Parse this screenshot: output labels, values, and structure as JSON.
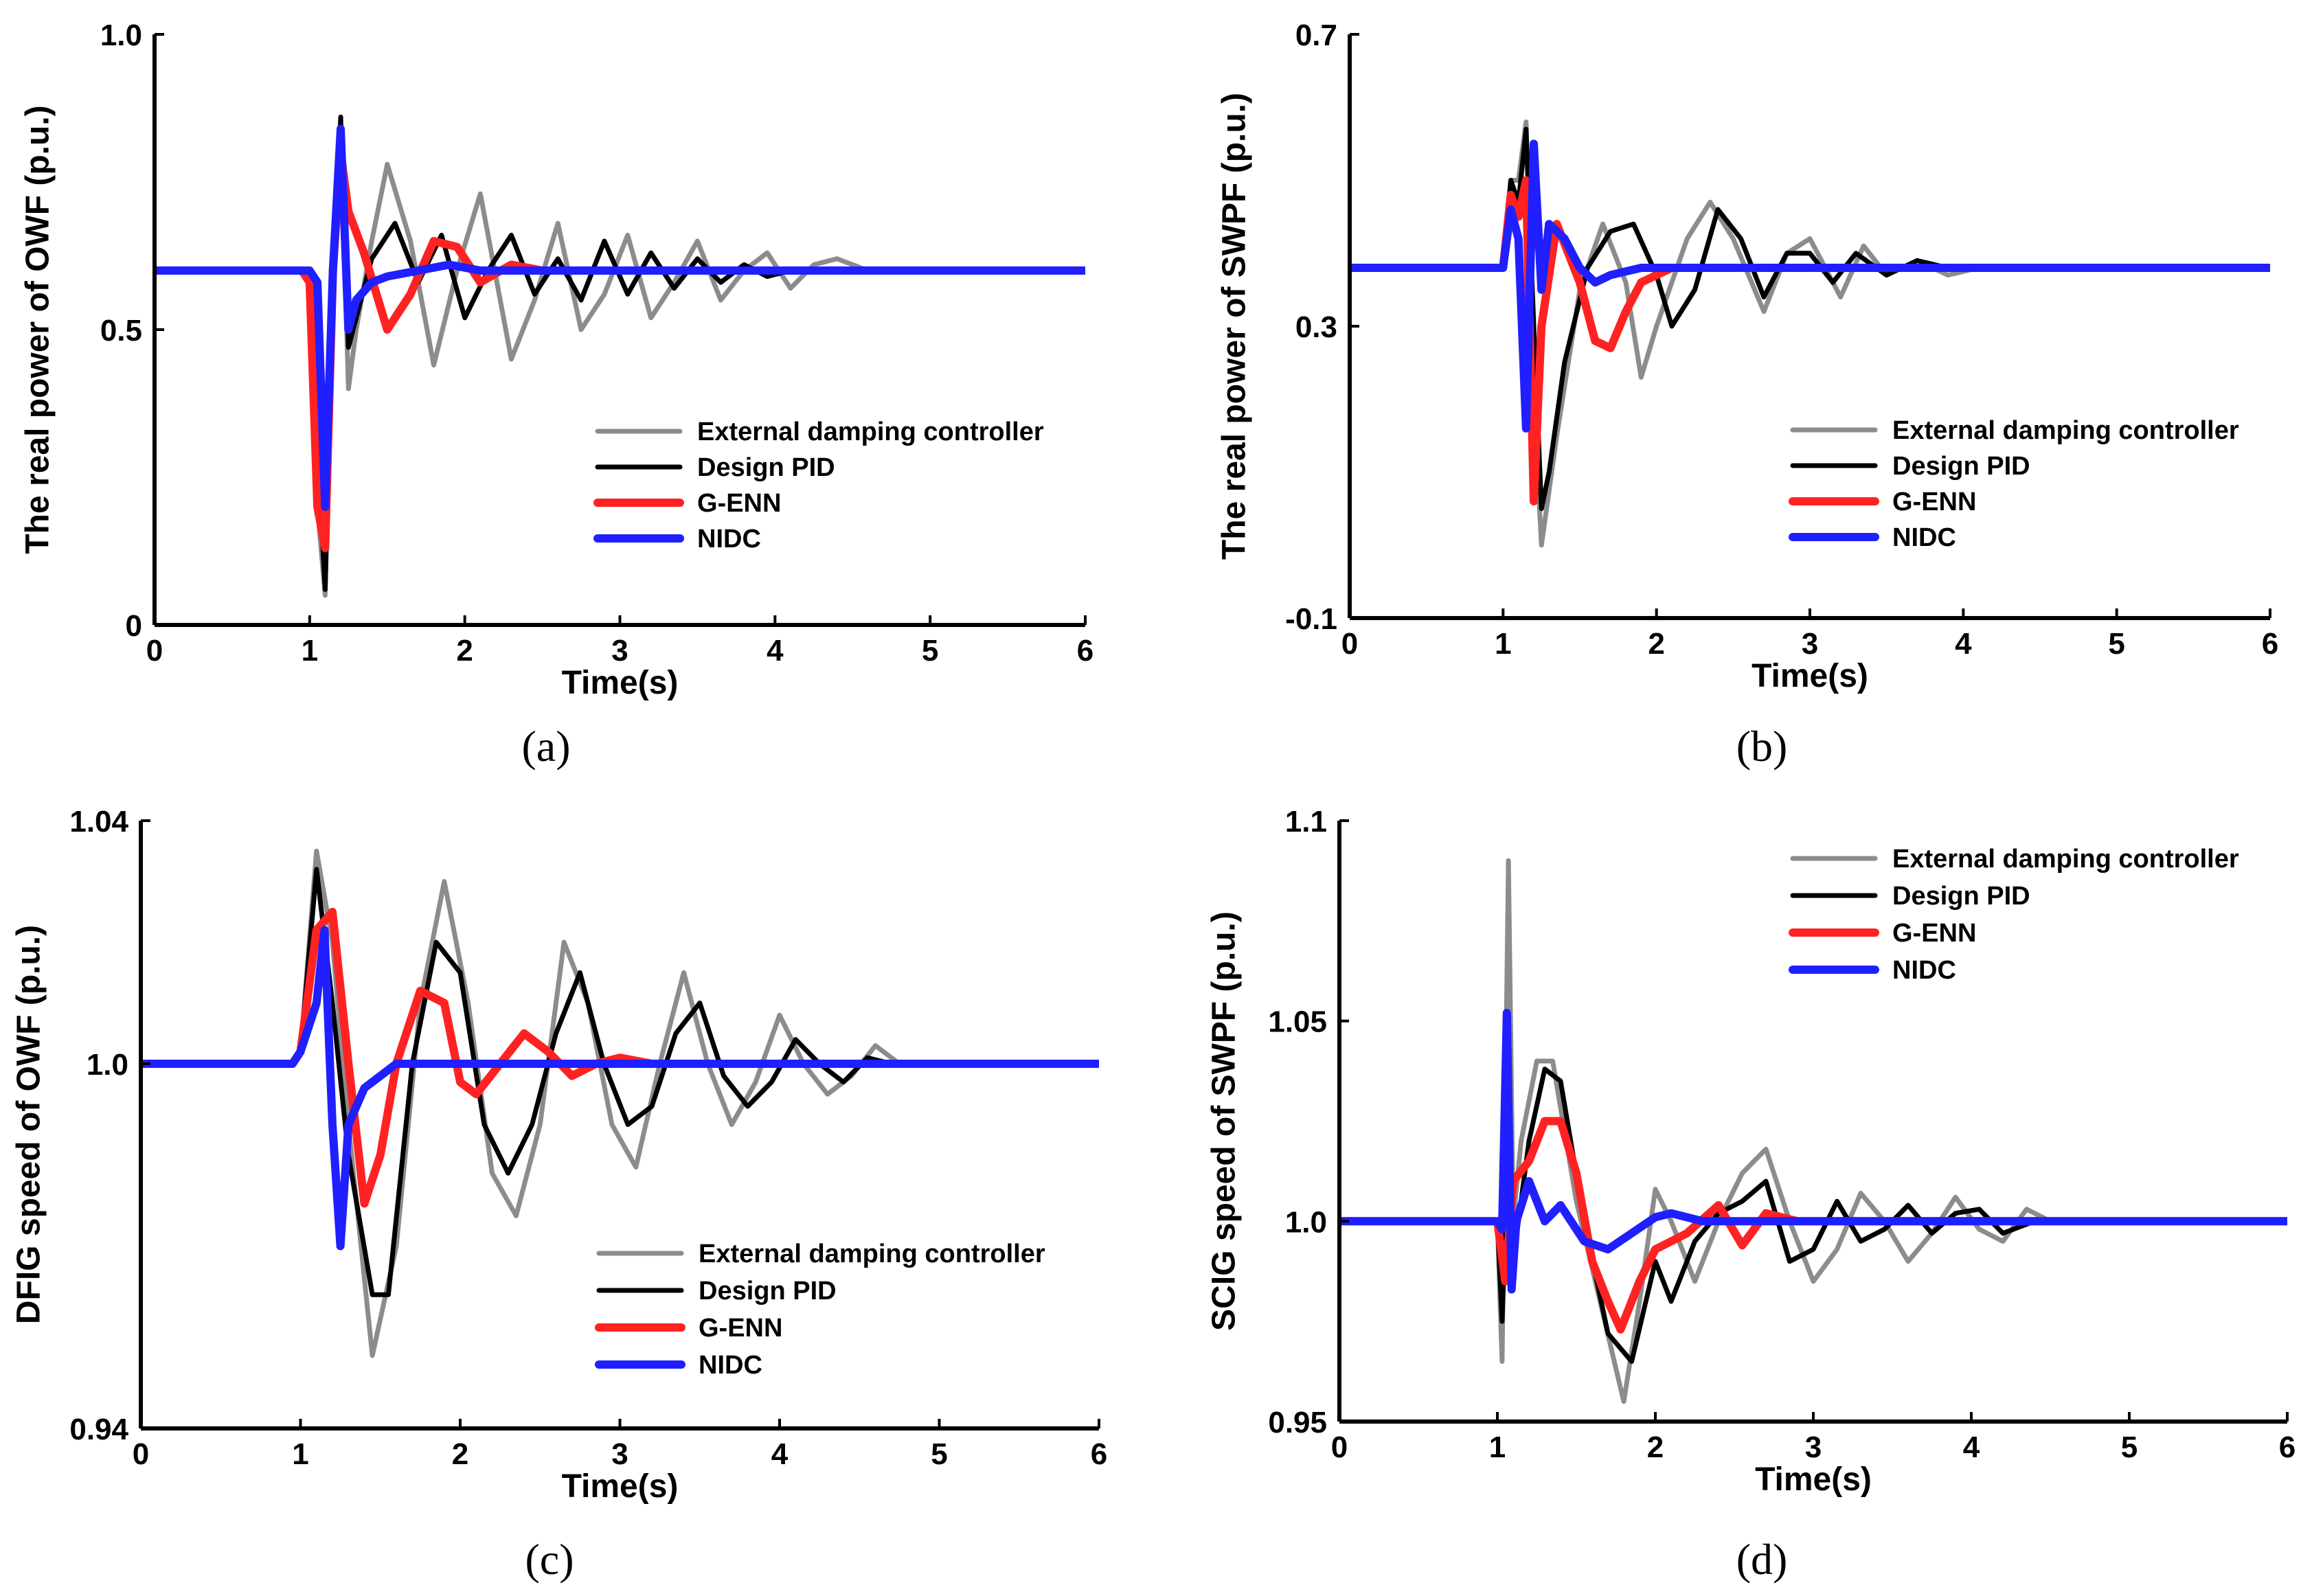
{
  "chart_data": [
    {
      "type": "line",
      "panel_label": "(a)",
      "xlabel": "Time(s)",
      "ylabel": "The real power of OWF (p.u.)",
      "xlim": [
        0,
        6
      ],
      "ylim": [
        0,
        1.0
      ],
      "xticks": [
        "0",
        "1",
        "2",
        "3",
        "4",
        "5",
        "6"
      ],
      "yticks": [
        {
          "value": 0,
          "label": "0"
        },
        {
          "value": 0.5,
          "label": "0.5"
        },
        {
          "value": 1.0,
          "label": "1.0"
        }
      ],
      "legend_position": "lower-right",
      "legend_entries": [
        "External damping controller",
        "Design PID",
        "G-ENN",
        "NIDC"
      ],
      "series": [
        {
          "name": "External damping controller",
          "color": "#8c8c8c",
          "x": [
            0,
            0.95,
            1.0,
            1.05,
            1.1,
            1.15,
            1.2,
            1.25,
            1.3,
            1.4,
            1.5,
            1.65,
            1.8,
            1.95,
            2.1,
            2.3,
            2.45,
            2.6,
            2.75,
            2.9,
            3.05,
            3.2,
            3.35,
            3.5,
            3.65,
            3.8,
            3.95,
            4.1,
            4.25,
            4.4,
            4.6,
            4.8,
            6.0
          ],
          "y": [
            0.6,
            0.6,
            0.6,
            0.2,
            0.05,
            0.6,
            0.84,
            0.4,
            0.5,
            0.65,
            0.78,
            0.65,
            0.44,
            0.6,
            0.73,
            0.45,
            0.55,
            0.68,
            0.5,
            0.56,
            0.66,
            0.52,
            0.58,
            0.65,
            0.55,
            0.6,
            0.63,
            0.57,
            0.61,
            0.62,
            0.6,
            0.6,
            0.6
          ]
        },
        {
          "name": "Design PID",
          "color": "#000000",
          "x": [
            0,
            0.95,
            1.0,
            1.05,
            1.1,
            1.15,
            1.2,
            1.25,
            1.4,
            1.55,
            1.7,
            1.85,
            2.0,
            2.15,
            2.3,
            2.45,
            2.6,
            2.75,
            2.9,
            3.05,
            3.2,
            3.35,
            3.5,
            3.65,
            3.8,
            3.95,
            4.1,
            4.3,
            4.5,
            6.0
          ],
          "y": [
            0.6,
            0.6,
            0.6,
            0.3,
            0.06,
            0.55,
            0.86,
            0.47,
            0.62,
            0.68,
            0.58,
            0.66,
            0.52,
            0.6,
            0.66,
            0.56,
            0.62,
            0.55,
            0.65,
            0.56,
            0.63,
            0.57,
            0.62,
            0.58,
            0.61,
            0.59,
            0.6,
            0.6,
            0.6,
            0.6
          ]
        },
        {
          "name": "G-ENN",
          "color": "#ff2222",
          "x": [
            0,
            0.95,
            1.0,
            1.05,
            1.1,
            1.15,
            1.2,
            1.25,
            1.35,
            1.5,
            1.65,
            1.8,
            1.95,
            2.1,
            2.3,
            2.5,
            2.7,
            2.9,
            6.0
          ],
          "y": [
            0.6,
            0.6,
            0.58,
            0.2,
            0.13,
            0.6,
            0.8,
            0.7,
            0.63,
            0.5,
            0.56,
            0.65,
            0.64,
            0.58,
            0.61,
            0.6,
            0.6,
            0.6,
            0.6
          ]
        },
        {
          "name": "NIDC",
          "color": "#1f1fff",
          "x": [
            0,
            0.95,
            1.0,
            1.05,
            1.1,
            1.15,
            1.2,
            1.25,
            1.3,
            1.4,
            1.5,
            1.7,
            1.9,
            2.1,
            2.5,
            6.0
          ],
          "y": [
            0.6,
            0.6,
            0.6,
            0.58,
            0.2,
            0.6,
            0.84,
            0.5,
            0.55,
            0.58,
            0.59,
            0.6,
            0.61,
            0.6,
            0.6,
            0.6
          ]
        }
      ]
    },
    {
      "type": "line",
      "panel_label": "(b)",
      "xlabel": "Time(s)",
      "ylabel": "The real power of SWPF (p.u.)",
      "xlim": [
        0,
        6
      ],
      "ylim": [
        -0.1,
        0.7
      ],
      "xticks": [
        "0",
        "1",
        "2",
        "3",
        "4",
        "5",
        "6"
      ],
      "yticks": [
        {
          "value": -0.1,
          "label": "-0.1"
        },
        {
          "value": 0.3,
          "label": "0.3"
        },
        {
          "value": 0.7,
          "label": "0.7"
        }
      ],
      "legend_position": "lower-right",
      "legend_entries": [
        "External damping controller",
        "Design PID",
        "G-ENN",
        "NIDC"
      ],
      "series": [
        {
          "name": "External damping controller",
          "color": "#8c8c8c",
          "x": [
            0,
            1.0,
            1.05,
            1.1,
            1.15,
            1.2,
            1.25,
            1.35,
            1.5,
            1.65,
            1.8,
            1.9,
            2.0,
            2.2,
            2.35,
            2.5,
            2.7,
            2.85,
            3.0,
            3.2,
            3.35,
            3.5,
            3.7,
            3.9,
            4.1,
            4.3,
            6.0
          ],
          "y": [
            0.38,
            0.38,
            0.5,
            0.5,
            0.58,
            0.2,
            0.0,
            0.15,
            0.35,
            0.44,
            0.36,
            0.23,
            0.3,
            0.42,
            0.47,
            0.42,
            0.32,
            0.4,
            0.42,
            0.34,
            0.41,
            0.37,
            0.39,
            0.37,
            0.38,
            0.38,
            0.38
          ]
        },
        {
          "name": "Design PID",
          "color": "#000000",
          "x": [
            0,
            1.0,
            1.05,
            1.1,
            1.15,
            1.2,
            1.25,
            1.3,
            1.4,
            1.55,
            1.7,
            1.85,
            2.0,
            2.1,
            2.25,
            2.4,
            2.55,
            2.7,
            2.85,
            3.0,
            3.15,
            3.3,
            3.5,
            3.7,
            3.9,
            4.2,
            6.0
          ],
          "y": [
            0.38,
            0.38,
            0.5,
            0.47,
            0.57,
            0.3,
            0.05,
            0.1,
            0.25,
            0.38,
            0.43,
            0.44,
            0.37,
            0.3,
            0.35,
            0.46,
            0.42,
            0.34,
            0.4,
            0.4,
            0.36,
            0.4,
            0.37,
            0.39,
            0.38,
            0.38,
            0.38
          ]
        },
        {
          "name": "G-ENN",
          "color": "#ff2222",
          "x": [
            0,
            1.0,
            1.05,
            1.1,
            1.15,
            1.2,
            1.25,
            1.35,
            1.5,
            1.6,
            1.7,
            1.8,
            1.9,
            2.1,
            2.3,
            6.0
          ],
          "y": [
            0.38,
            0.38,
            0.48,
            0.45,
            0.5,
            0.06,
            0.3,
            0.44,
            0.36,
            0.28,
            0.27,
            0.32,
            0.36,
            0.38,
            0.38,
            0.38
          ]
        },
        {
          "name": "NIDC",
          "color": "#1f1fff",
          "x": [
            0,
            1.0,
            1.05,
            1.1,
            1.15,
            1.2,
            1.25,
            1.3,
            1.4,
            1.5,
            1.6,
            1.7,
            1.9,
            2.2,
            6.0
          ],
          "y": [
            0.38,
            0.38,
            0.46,
            0.42,
            0.16,
            0.55,
            0.35,
            0.44,
            0.42,
            0.38,
            0.36,
            0.37,
            0.38,
            0.38,
            0.38
          ]
        }
      ]
    },
    {
      "type": "line",
      "panel_label": "(c)",
      "xlabel": "Time(s)",
      "ylabel": "DFIG speed of OWF (p.u.)",
      "xlim": [
        0,
        6
      ],
      "ylim": [
        0.94,
        1.04
      ],
      "xticks": [
        "0",
        "1",
        "2",
        "3",
        "4",
        "5",
        "6"
      ],
      "yticks": [
        {
          "value": 0.94,
          "label": "0.94"
        },
        {
          "value": 1.0,
          "label": "1.0"
        },
        {
          "value": 1.04,
          "label": "1.04"
        }
      ],
      "legend_position": "lower-right",
      "legend_entries": [
        "External damping controller",
        "Design PID",
        "G-ENN",
        "NIDC"
      ],
      "series": [
        {
          "name": "External damping controller",
          "color": "#8c8c8c",
          "x": [
            0,
            0.95,
            1.0,
            1.1,
            1.2,
            1.3,
            1.45,
            1.6,
            1.75,
            1.9,
            2.05,
            2.2,
            2.35,
            2.5,
            2.65,
            2.8,
            2.95,
            3.1,
            3.25,
            3.4,
            3.55,
            3.7,
            3.85,
            4.0,
            4.15,
            4.3,
            4.45,
            4.6,
            4.75,
            4.9,
            6.0
          ],
          "y": [
            1.0,
            1.0,
            1.002,
            1.035,
            1.02,
            0.99,
            0.952,
            0.97,
            1.01,
            1.03,
            1.01,
            0.982,
            0.975,
            0.99,
            1.02,
            1.01,
            0.99,
            0.983,
            1.0,
            1.015,
            1.0,
            0.99,
            0.997,
            1.008,
            1.0,
            0.995,
            0.998,
            1.003,
            1.0,
            1.0,
            1.0
          ]
        },
        {
          "name": "Design PID",
          "color": "#000000",
          "x": [
            0,
            0.95,
            1.0,
            1.1,
            1.2,
            1.3,
            1.45,
            1.55,
            1.7,
            1.85,
            2.0,
            2.15,
            2.3,
            2.45,
            2.6,
            2.75,
            2.9,
            3.05,
            3.2,
            3.35,
            3.5,
            3.65,
            3.8,
            3.95,
            4.1,
            4.25,
            4.4,
            4.55,
            4.7,
            6.0
          ],
          "y": [
            1.0,
            1.0,
            1.002,
            1.032,
            1.01,
            0.985,
            0.962,
            0.962,
            1.0,
            1.02,
            1.015,
            0.99,
            0.982,
            0.99,
            1.005,
            1.015,
            1.0,
            0.99,
            0.993,
            1.005,
            1.01,
            0.998,
            0.993,
            0.997,
            1.004,
            1.0,
            0.997,
            1.001,
            1.0,
            1.0
          ]
        },
        {
          "name": "G-ENN",
          "color": "#ff2222",
          "x": [
            0,
            0.95,
            1.0,
            1.1,
            1.2,
            1.3,
            1.4,
            1.5,
            1.6,
            1.75,
            1.9,
            2.0,
            2.1,
            2.25,
            2.4,
            2.55,
            2.7,
            2.85,
            3.0,
            3.2,
            3.4,
            6.0
          ],
          "y": [
            1.0,
            1.0,
            1.002,
            1.022,
            1.025,
            1.0,
            0.977,
            0.985,
            1.0,
            1.012,
            1.01,
            0.997,
            0.995,
            1.0,
            1.005,
            1.002,
            0.998,
            1.0,
            1.001,
            1.0,
            1.0,
            1.0
          ]
        },
        {
          "name": "NIDC",
          "color": "#1f1fff",
          "x": [
            0,
            0.95,
            1.0,
            1.1,
            1.15,
            1.2,
            1.25,
            1.3,
            1.4,
            1.5,
            1.6,
            1.7,
            1.8,
            2.0,
            6.0
          ],
          "y": [
            1.0,
            1.0,
            1.002,
            1.01,
            1.022,
            0.99,
            0.97,
            0.99,
            0.996,
            0.998,
            1.0,
            1.0,
            1.0,
            1.0,
            1.0
          ]
        }
      ]
    },
    {
      "type": "line",
      "panel_label": "(d)",
      "xlabel": "Time(s)",
      "ylabel": "SCIG speed of SWPF (p.u.)",
      "xlim": [
        0,
        6
      ],
      "ylim": [
        0.95,
        1.1
      ],
      "xticks": [
        "0",
        "1",
        "2",
        "3",
        "4",
        "5",
        "6"
      ],
      "yticks": [
        {
          "value": 0.95,
          "label": "0.95"
        },
        {
          "value": 1.0,
          "label": "1.0"
        },
        {
          "value": 1.05,
          "label": "1.05"
        },
        {
          "value": 1.1,
          "label": "1.1"
        }
      ],
      "legend_position": "upper-right",
      "legend_entries": [
        "External damping controller",
        "Design PID",
        "G-ENN",
        "NIDC"
      ],
      "series": [
        {
          "name": "External damping controller",
          "color": "#8c8c8c",
          "x": [
            0,
            0.98,
            1.0,
            1.03,
            1.07,
            1.1,
            1.15,
            1.25,
            1.35,
            1.5,
            1.65,
            1.8,
            1.9,
            2.0,
            2.1,
            2.25,
            2.4,
            2.55,
            2.7,
            2.85,
            3.0,
            3.15,
            3.3,
            3.45,
            3.6,
            3.75,
            3.9,
            4.05,
            4.2,
            4.35,
            4.5,
            4.7,
            6.0
          ],
          "y": [
            1.0,
            1.0,
            1.0,
            0.965,
            1.09,
            1.0,
            1.02,
            1.04,
            1.04,
            1.005,
            0.98,
            0.955,
            0.98,
            1.008,
            1.0,
            0.985,
            1.0,
            1.012,
            1.018,
            1.0,
            0.985,
            0.993,
            1.007,
            1.0,
            0.99,
            0.997,
            1.006,
            0.998,
            0.995,
            1.003,
            1.0,
            1.0,
            1.0
          ]
        },
        {
          "name": "Design PID",
          "color": "#000000",
          "x": [
            0,
            0.98,
            1.0,
            1.03,
            1.07,
            1.1,
            1.2,
            1.3,
            1.4,
            1.55,
            1.7,
            1.85,
            2.0,
            2.1,
            2.25,
            2.4,
            2.55,
            2.7,
            2.85,
            3.0,
            3.15,
            3.3,
            3.45,
            3.6,
            3.75,
            3.9,
            4.05,
            4.2,
            4.4,
            4.6,
            6.0
          ],
          "y": [
            1.0,
            1.0,
            1.0,
            0.975,
            1.02,
            0.99,
            1.02,
            1.038,
            1.035,
            1.0,
            0.972,
            0.965,
            0.99,
            0.98,
            0.995,
            1.002,
            1.005,
            1.01,
            0.99,
            0.993,
            1.005,
            0.995,
            0.998,
            1.004,
            0.997,
            1.002,
            1.003,
            0.997,
            1.0,
            1.0,
            1.0
          ]
        },
        {
          "name": "G-ENN",
          "color": "#ff2222",
          "x": [
            0,
            0.98,
            1.0,
            1.05,
            1.1,
            1.2,
            1.3,
            1.4,
            1.5,
            1.6,
            1.7,
            1.78,
            1.9,
            2.0,
            2.2,
            2.4,
            2.55,
            2.7,
            2.9,
            6.0
          ],
          "y": [
            1.0,
            1.0,
            1.0,
            0.985,
            1.01,
            1.015,
            1.025,
            1.025,
            1.012,
            0.99,
            0.98,
            0.973,
            0.985,
            0.993,
            0.997,
            1.004,
            0.994,
            1.002,
            1.0,
            1.0
          ]
        },
        {
          "name": "NIDC",
          "color": "#1f1fff",
          "x": [
            0,
            0.98,
            1.0,
            1.03,
            1.06,
            1.09,
            1.12,
            1.2,
            1.3,
            1.4,
            1.55,
            1.7,
            1.85,
            2.0,
            2.1,
            2.3,
            2.6,
            6.0
          ],
          "y": [
            1.0,
            1.0,
            1.0,
            0.998,
            1.052,
            0.983,
            1.0,
            1.01,
            1.0,
            1.004,
            0.995,
            0.993,
            0.997,
            1.001,
            1.002,
            1.0,
            1.0,
            1.0
          ]
        }
      ]
    }
  ]
}
